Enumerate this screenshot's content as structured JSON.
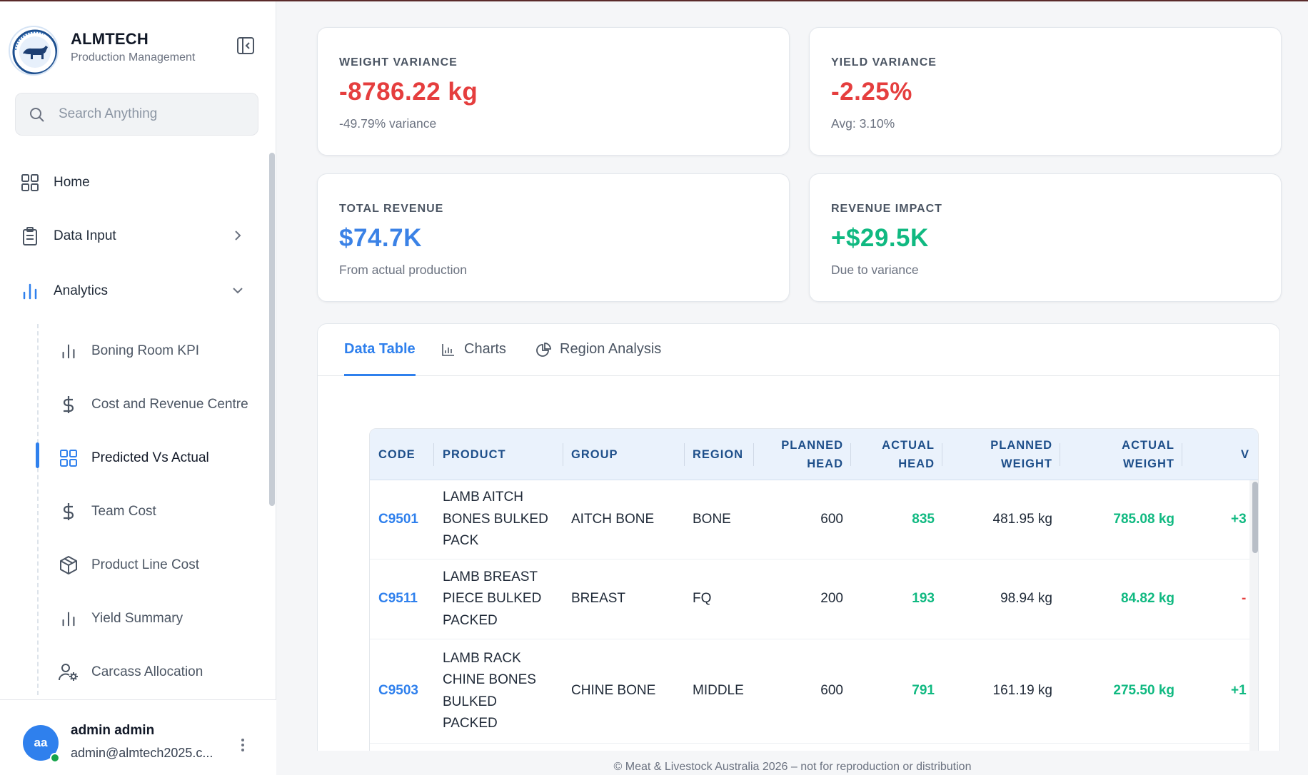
{
  "brand": {
    "name": "ALMTECH",
    "subtitle": "Production Management",
    "logo_icon": "cow-logo-icon"
  },
  "search": {
    "placeholder": "Search Anything"
  },
  "nav": {
    "home": "Home",
    "data_input": "Data Input",
    "analytics": "Analytics",
    "sub_items": [
      {
        "label": "Boning Room KPI",
        "icon": "bar-chart-icon"
      },
      {
        "label": "Cost and Revenue Centre",
        "icon": "dollar-icon"
      },
      {
        "label": "Predicted Vs Actual",
        "icon": "grid-icon",
        "active": true
      },
      {
        "label": "Team Cost",
        "icon": "dollar-icon"
      },
      {
        "label": "Product Line Cost",
        "icon": "box-icon"
      },
      {
        "label": "Yield Summary",
        "icon": "bar-chart-icon"
      },
      {
        "label": "Carcass Allocation",
        "icon": "user-gear-icon"
      }
    ]
  },
  "user": {
    "initials": "aa",
    "name": "admin admin",
    "email": "admin@almtech2025.c...",
    "status_color": "#16a34a"
  },
  "kpis": {
    "weight_variance": {
      "label": "WEIGHT VARIANCE",
      "value": "-8786.22 kg",
      "sub": "-49.79% variance",
      "color": "#e53e3e"
    },
    "yield_variance": {
      "label": "YIELD VARIANCE",
      "value": "-2.25%",
      "sub": "Avg: 3.10%",
      "color": "#e53e3e"
    },
    "total_revenue": {
      "label": "TOTAL REVENUE",
      "value": "$74.7K",
      "sub": "From actual production",
      "color": "#3b82e6"
    },
    "revenue_impact": {
      "label": "REVENUE IMPACT",
      "value": "+$29.5K",
      "sub": "Due to variance",
      "color": "#10b981"
    }
  },
  "tabs": [
    {
      "label": "Data Table",
      "active": true
    },
    {
      "label": "Charts",
      "icon": "chart-icon"
    },
    {
      "label": "Region Analysis",
      "icon": "pie-icon"
    }
  ],
  "table": {
    "headers": {
      "code": "CODE",
      "product": "PRODUCT",
      "group": "GROUP",
      "region": "REGION",
      "planned_head": [
        "PLANNED",
        "HEAD"
      ],
      "actual_head": [
        "ACTUAL",
        "HEAD"
      ],
      "planned_weight": [
        "PLANNED",
        "WEIGHT"
      ],
      "actual_weight": [
        "ACTUAL",
        "WEIGHT"
      ],
      "variance_partial": "V"
    },
    "rows": [
      {
        "code": "C9501",
        "product": "LAMB AITCH BONES BULKED PACK",
        "group": "AITCH BONE",
        "region": "BONE",
        "planned_head": "600",
        "actual_head": "835",
        "planned_weight": "481.95 kg",
        "actual_weight": "785.08 kg",
        "variance_partial": "+3",
        "variance_sign": "positive"
      },
      {
        "code": "C9511",
        "product": "LAMB BREAST PIECE BULKED PACKED",
        "group": "BREAST",
        "region": "FQ",
        "planned_head": "200",
        "actual_head": "193",
        "planned_weight": "98.94 kg",
        "actual_weight": "84.82 kg",
        "variance_partial": "-",
        "variance_sign": "negative"
      },
      {
        "code": "C9503",
        "product": "LAMB RACK CHINE BONES BULKED PACKED",
        "group": "CHINE BONE",
        "region": "MIDDLE",
        "planned_head": "600",
        "actual_head": "791",
        "planned_weight": "161.19 kg",
        "actual_weight": "275.50 kg",
        "variance_partial": "+1",
        "variance_sign": "positive"
      }
    ]
  },
  "footer": "© Meat & Livestock Australia 2026 – not for reproduction or distribution"
}
